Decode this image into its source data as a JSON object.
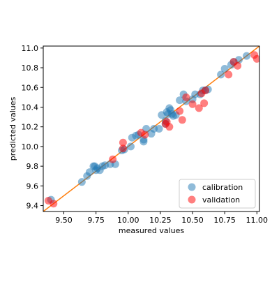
{
  "chart_data": {
    "type": "scatter",
    "title": "",
    "xlabel": "measured values",
    "ylabel": "predicted values",
    "xlim": [
      9.34,
      11.02
    ],
    "ylim": [
      9.34,
      11.02
    ],
    "xticks": [
      9.5,
      9.75,
      10.0,
      10.25,
      10.5,
      10.75,
      11.0
    ],
    "xtick_labels": [
      "9.50",
      "9.75",
      "10.00",
      "10.25",
      "10.50",
      "10.75",
      "11.00"
    ],
    "yticks": [
      9.4,
      9.6,
      9.8,
      10.0,
      10.2,
      10.4,
      10.6,
      10.8,
      11.0
    ],
    "ytick_labels": [
      "9.4",
      "9.6",
      "9.8",
      "10.0",
      "10.2",
      "10.4",
      "10.6",
      "10.8",
      "11.0"
    ],
    "grid": false,
    "legend_position": "lower-right",
    "reference_line": {
      "type": "identity",
      "color": "#ff7f0e"
    },
    "series": [
      {
        "name": "calibration",
        "color": "#1f77b4",
        "points": [
          [
            9.4,
            9.46
          ],
          [
            9.64,
            9.64
          ],
          [
            9.68,
            9.7
          ],
          [
            9.7,
            9.74
          ],
          [
            9.73,
            9.8
          ],
          [
            9.74,
            9.8
          ],
          [
            9.75,
            9.76
          ],
          [
            9.76,
            9.78
          ],
          [
            9.78,
            9.76
          ],
          [
            9.8,
            9.8
          ],
          [
            9.82,
            9.81
          ],
          [
            9.86,
            9.82
          ],
          [
            9.9,
            9.82
          ],
          [
            9.95,
            9.96
          ],
          [
            9.97,
            9.97
          ],
          [
            10.02,
            10.0
          ],
          [
            10.03,
            10.09
          ],
          [
            10.06,
            10.11
          ],
          [
            10.08,
            10.12
          ],
          [
            10.12,
            10.07
          ],
          [
            10.12,
            10.05
          ],
          [
            10.14,
            10.18
          ],
          [
            10.18,
            10.13
          ],
          [
            10.2,
            10.18
          ],
          [
            10.24,
            10.18
          ],
          [
            10.26,
            10.32
          ],
          [
            10.29,
            10.23
          ],
          [
            10.29,
            10.26
          ],
          [
            10.3,
            10.35
          ],
          [
            10.31,
            10.33
          ],
          [
            10.32,
            10.39
          ],
          [
            10.33,
            10.37
          ],
          [
            10.34,
            10.33
          ],
          [
            10.35,
            10.31
          ],
          [
            10.37,
            10.32
          ],
          [
            10.4,
            10.47
          ],
          [
            10.43,
            10.53
          ],
          [
            10.45,
            10.46
          ],
          [
            10.5,
            10.48
          ],
          [
            10.52,
            10.53
          ],
          [
            10.56,
            10.53
          ],
          [
            10.58,
            10.57
          ],
          [
            10.6,
            10.57
          ],
          [
            10.62,
            10.58
          ],
          [
            10.72,
            10.73
          ],
          [
            10.75,
            10.79
          ],
          [
            10.8,
            10.83
          ],
          [
            10.82,
            10.86
          ],
          [
            10.86,
            10.88
          ],
          [
            10.92,
            10.92
          ]
        ]
      },
      {
        "name": "validation",
        "color": "#ff0000",
        "points": [
          [
            9.38,
            9.45
          ],
          [
            9.42,
            9.42
          ],
          [
            9.88,
            9.87
          ],
          [
            9.96,
            10.04
          ],
          [
            9.96,
            9.98
          ],
          [
            10.1,
            10.14
          ],
          [
            10.13,
            10.12
          ],
          [
            10.29,
            10.23
          ],
          [
            10.3,
            10.25
          ],
          [
            10.32,
            10.2
          ],
          [
            10.4,
            10.36
          ],
          [
            10.42,
            10.27
          ],
          [
            10.45,
            10.5
          ],
          [
            10.5,
            10.43
          ],
          [
            10.55,
            10.39
          ],
          [
            10.57,
            10.54
          ],
          [
            10.59,
            10.44
          ],
          [
            10.6,
            10.57
          ],
          [
            10.78,
            10.73
          ],
          [
            10.82,
            10.86
          ],
          [
            10.85,
            10.82
          ],
          [
            10.98,
            10.93
          ],
          [
            11.0,
            10.89
          ]
        ]
      }
    ]
  }
}
